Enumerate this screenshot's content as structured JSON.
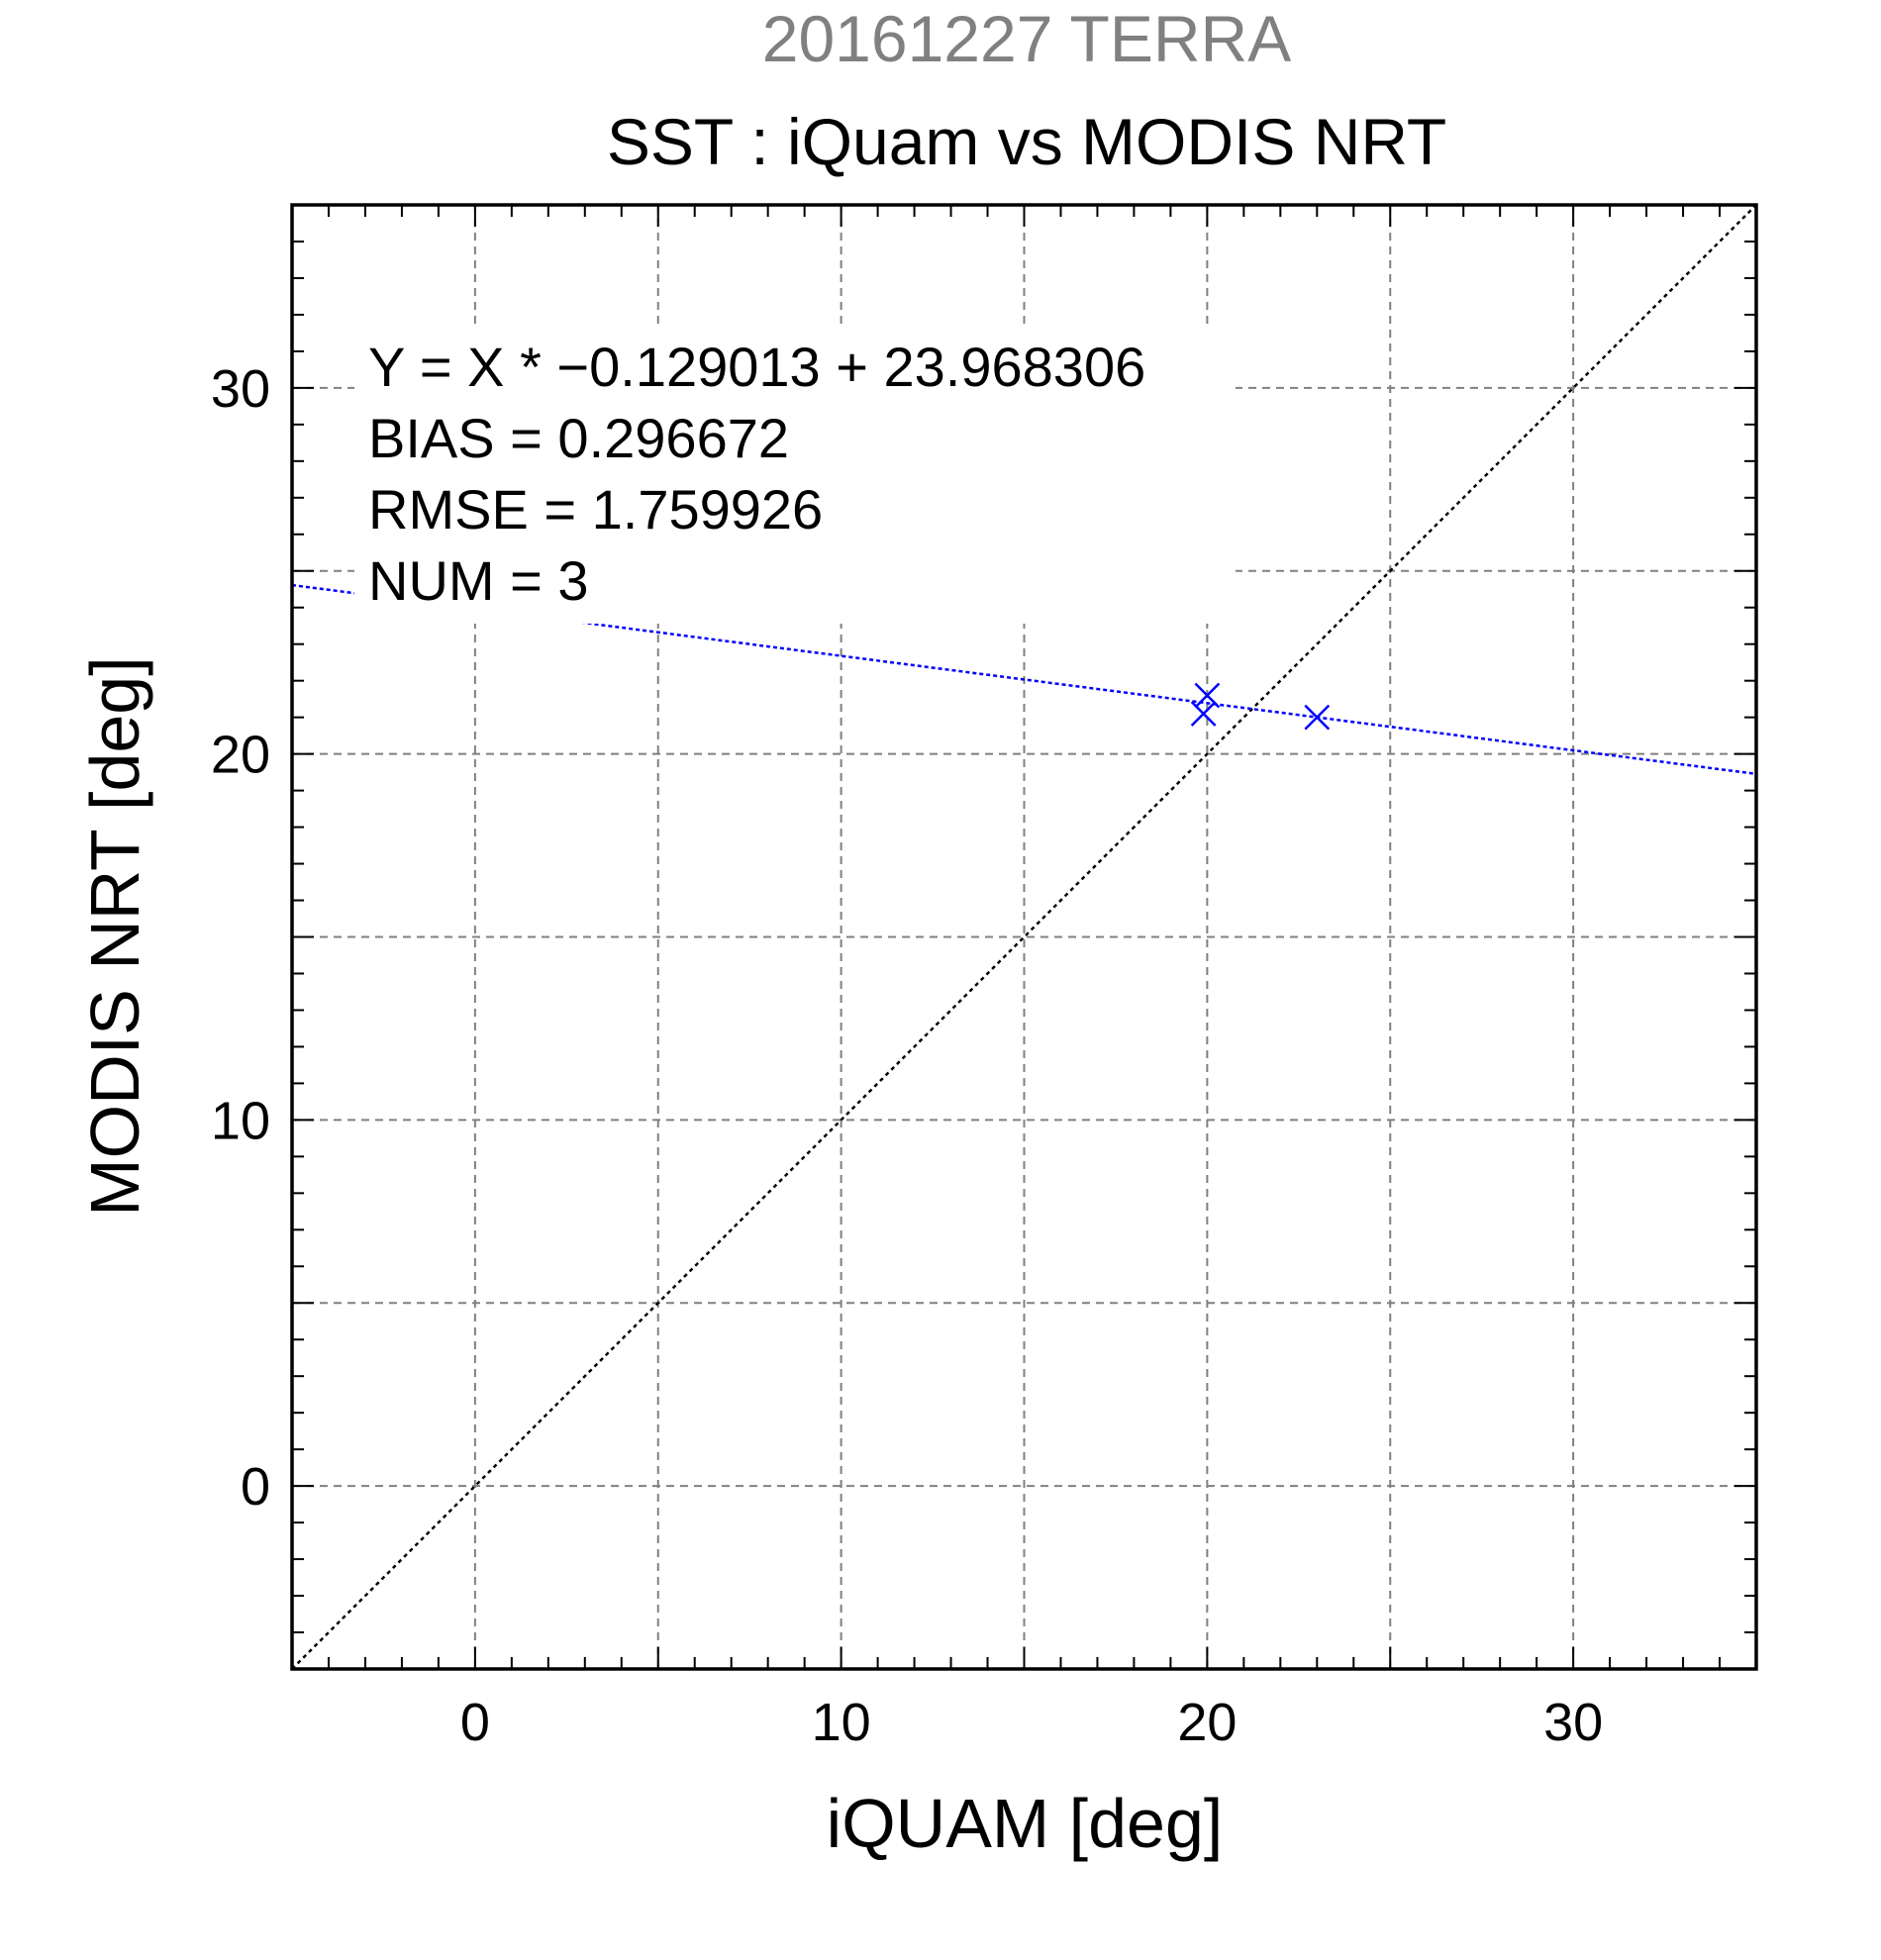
{
  "chart_data": {
    "type": "scatter",
    "supertitle": "20161227 TERRA",
    "title": "SST : iQuam vs MODIS NRT",
    "xlabel": "iQUAM [deg]",
    "ylabel": "MODIS NRT [deg]",
    "xlim": [
      -5,
      35
    ],
    "ylim": [
      -5,
      35
    ],
    "xticks": [
      0,
      10,
      20,
      30
    ],
    "yticks": [
      0,
      10,
      20,
      30
    ],
    "grid_step": 5,
    "grid": true,
    "points": [
      {
        "x": 20.0,
        "y": 21.6
      },
      {
        "x": 19.9,
        "y": 21.1
      },
      {
        "x": 23.0,
        "y": 21.0
      }
    ],
    "fit": {
      "slope": -0.129013,
      "intercept": 23.968306
    },
    "reference_line": "y = x",
    "annotations": [
      "Y = X * −0.129013 + 23.968306",
      "BIAS = 0.296672",
      "RMSE = 1.759926",
      "NUM = 3"
    ],
    "colors": {
      "supertitle": "#808080",
      "points": "#0000ff",
      "fit_line": "#0000ff",
      "reference_line": "#000000",
      "grid": "#808080"
    }
  }
}
